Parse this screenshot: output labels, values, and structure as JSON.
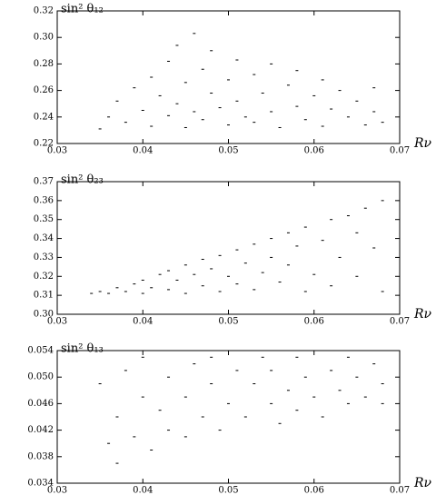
{
  "chart_data": [
    {
      "type": "scatter",
      "title": "sin² θ₁₂",
      "xlabel": "Rν",
      "color": "#000000",
      "xlim": [
        0.03,
        0.07
      ],
      "xticks": [
        0.03,
        0.04,
        0.05,
        0.06,
        0.07
      ],
      "ylim": [
        0.22,
        0.32
      ],
      "yticks": [
        0.22,
        0.24,
        0.26,
        0.28,
        {
          "value": 0.3,
          "label": "0.30"
        },
        0.32
      ],
      "x": [
        0.035,
        0.036,
        0.037,
        0.038,
        0.039,
        0.04,
        0.041,
        0.041,
        0.042,
        0.043,
        0.043,
        0.044,
        0.044,
        0.045,
        0.045,
        0.046,
        0.046,
        0.047,
        0.047,
        0.048,
        0.048,
        0.049,
        0.05,
        0.05,
        0.051,
        0.051,
        0.052,
        0.053,
        0.053,
        0.054,
        0.055,
        0.055,
        0.056,
        0.057,
        0.058,
        0.058,
        0.059,
        0.06,
        0.061,
        0.061,
        0.062,
        0.063,
        0.064,
        0.065,
        0.066,
        0.067,
        0.067,
        0.068
      ],
      "values": [
        0.231,
        0.24,
        0.252,
        0.236,
        0.262,
        0.245,
        0.27,
        0.233,
        0.256,
        0.282,
        0.241,
        0.294,
        0.25,
        0.232,
        0.266,
        0.303,
        0.244,
        0.276,
        0.238,
        0.258,
        0.29,
        0.247,
        0.268,
        0.234,
        0.283,
        0.252,
        0.24,
        0.272,
        0.236,
        0.258,
        0.28,
        0.244,
        0.232,
        0.264,
        0.248,
        0.275,
        0.238,
        0.256,
        0.268,
        0.233,
        0.246,
        0.26,
        0.24,
        0.252,
        0.234,
        0.262,
        0.244,
        0.236
      ]
    },
    {
      "type": "scatter",
      "title": "sin² θ₂₃",
      "xlabel": "Rν",
      "color": "#000000",
      "xlim": [
        0.03,
        0.07
      ],
      "xticks": [
        0.03,
        0.04,
        0.05,
        0.06,
        0.07
      ],
      "ylim": [
        0.3,
        0.37
      ],
      "yticks": [
        {
          "value": 0.3,
          "label": "0.30"
        },
        0.31,
        0.32,
        0.33,
        0.34,
        0.35,
        0.36,
        0.37
      ],
      "x": [
        0.034,
        0.035,
        0.036,
        0.037,
        0.038,
        0.039,
        0.04,
        0.04,
        0.041,
        0.042,
        0.043,
        0.043,
        0.044,
        0.045,
        0.045,
        0.046,
        0.047,
        0.047,
        0.048,
        0.049,
        0.049,
        0.05,
        0.051,
        0.051,
        0.052,
        0.053,
        0.053,
        0.054,
        0.055,
        0.055,
        0.056,
        0.057,
        0.057,
        0.058,
        0.059,
        0.059,
        0.06,
        0.061,
        0.062,
        0.062,
        0.063,
        0.064,
        0.065,
        0.065,
        0.066,
        0.067,
        0.068,
        0.068
      ],
      "values": [
        0.311,
        0.312,
        0.311,
        0.314,
        0.312,
        0.316,
        0.311,
        0.318,
        0.314,
        0.321,
        0.313,
        0.323,
        0.318,
        0.326,
        0.311,
        0.321,
        0.329,
        0.315,
        0.324,
        0.331,
        0.312,
        0.32,
        0.334,
        0.316,
        0.327,
        0.337,
        0.313,
        0.322,
        0.34,
        0.33,
        0.317,
        0.343,
        0.326,
        0.336,
        0.312,
        0.346,
        0.321,
        0.339,
        0.35,
        0.315,
        0.33,
        0.352,
        0.343,
        0.32,
        0.356,
        0.335,
        0.36,
        0.312
      ]
    },
    {
      "type": "scatter",
      "title": "sin² θ₁₃",
      "xlabel": "Rν",
      "color": "#000000",
      "xlim": [
        0.03,
        0.07
      ],
      "xticks": [
        0.03,
        0.04,
        0.05,
        0.06,
        0.07
      ],
      "ylim": [
        0.034,
        0.054
      ],
      "yticks": [
        0.034,
        0.038,
        0.042,
        0.046,
        {
          "value": 0.05,
          "label": "0.050"
        },
        0.054
      ],
      "x": [
        0.035,
        0.036,
        0.037,
        0.037,
        0.038,
        0.039,
        0.04,
        0.04,
        0.041,
        0.042,
        0.043,
        0.043,
        0.044,
        0.045,
        0.045,
        0.046,
        0.047,
        0.048,
        0.048,
        0.049,
        0.05,
        0.051,
        0.051,
        0.052,
        0.053,
        0.054,
        0.055,
        0.055,
        0.056,
        0.057,
        0.058,
        0.058,
        0.059,
        0.06,
        0.061,
        0.061,
        0.062,
        0.063,
        0.064,
        0.064,
        0.065,
        0.066,
        0.066,
        0.067,
        0.068,
        0.068
      ],
      "values": [
        0.049,
        0.04,
        0.044,
        0.037,
        0.051,
        0.041,
        0.047,
        0.053,
        0.039,
        0.045,
        0.05,
        0.042,
        0.054,
        0.047,
        0.041,
        0.052,
        0.044,
        0.049,
        0.053,
        0.042,
        0.046,
        0.051,
        0.054,
        0.044,
        0.049,
        0.053,
        0.046,
        0.051,
        0.043,
        0.048,
        0.053,
        0.045,
        0.05,
        0.047,
        0.054,
        0.044,
        0.051,
        0.048,
        0.053,
        0.046,
        0.05,
        0.054,
        0.047,
        0.052,
        0.049,
        0.046
      ]
    }
  ]
}
